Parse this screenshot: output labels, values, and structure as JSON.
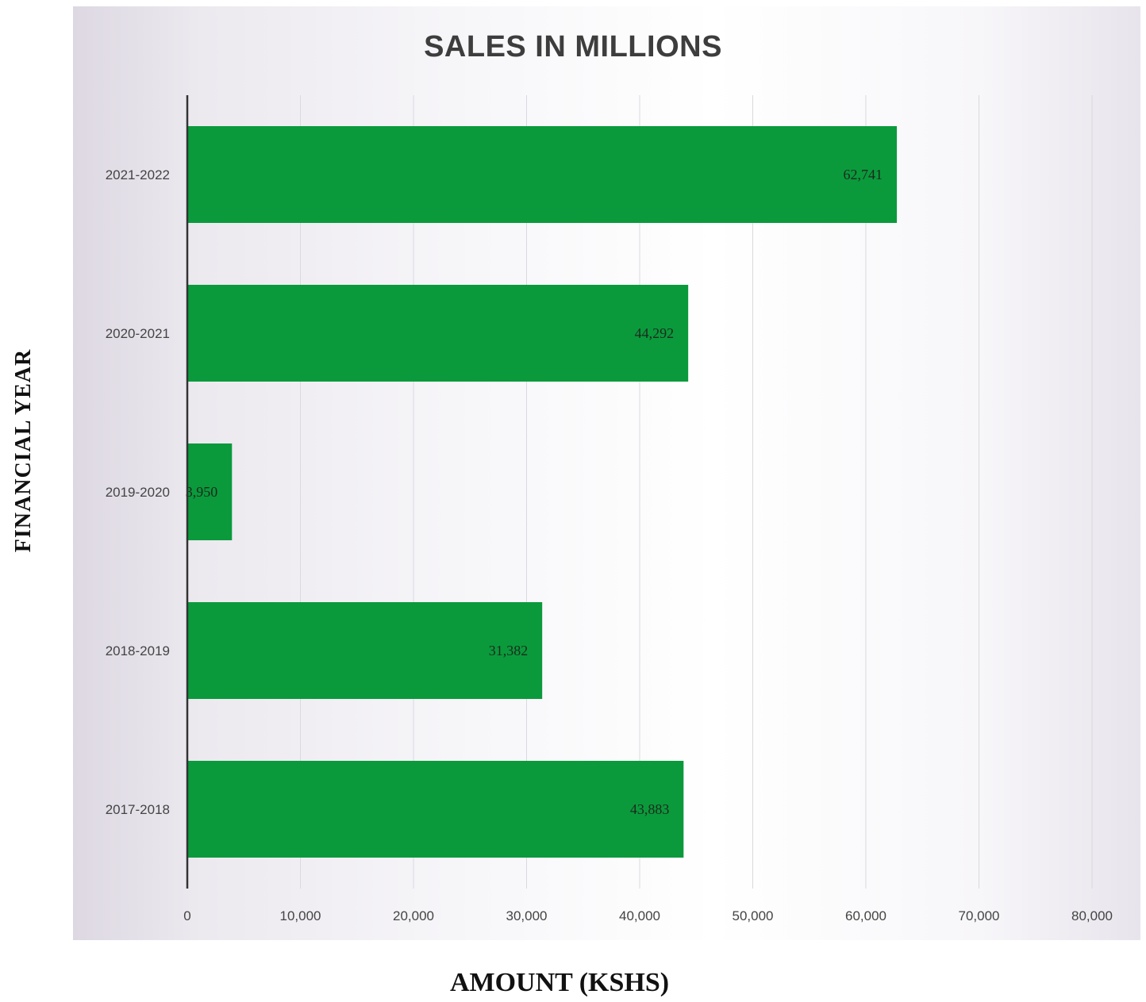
{
  "chart_data": {
    "type": "bar",
    "orientation": "horizontal",
    "title": "SALES IN MILLIONS",
    "xlabel": "AMOUNT (KSHS)",
    "ylabel": "FINANCIAL YEAR",
    "categories": [
      "2021-2022",
      "2020-2021",
      "2019-2020",
      "2018-2019",
      "2017-2018"
    ],
    "values": [
      62741,
      44292,
      3950,
      31382,
      43883
    ],
    "data_labels": [
      "62,741",
      "44,292",
      "3,950",
      "31,382",
      "43,883"
    ],
    "xlim": [
      0,
      80000
    ],
    "x_ticks": [
      0,
      10000,
      20000,
      30000,
      40000,
      50000,
      60000,
      70000,
      80000
    ],
    "x_tick_labels": [
      "0",
      "10,000",
      "20,000",
      "30,000",
      "40,000",
      "50,000",
      "60,000",
      "70,000",
      "80,000"
    ],
    "grid": true,
    "legend": "none",
    "colors": {
      "bar": "#0a9a3c",
      "data_label": "#1c2a1c",
      "axis": "#333333",
      "grid": "#d9d9de",
      "tick_label": "#444444"
    }
  }
}
